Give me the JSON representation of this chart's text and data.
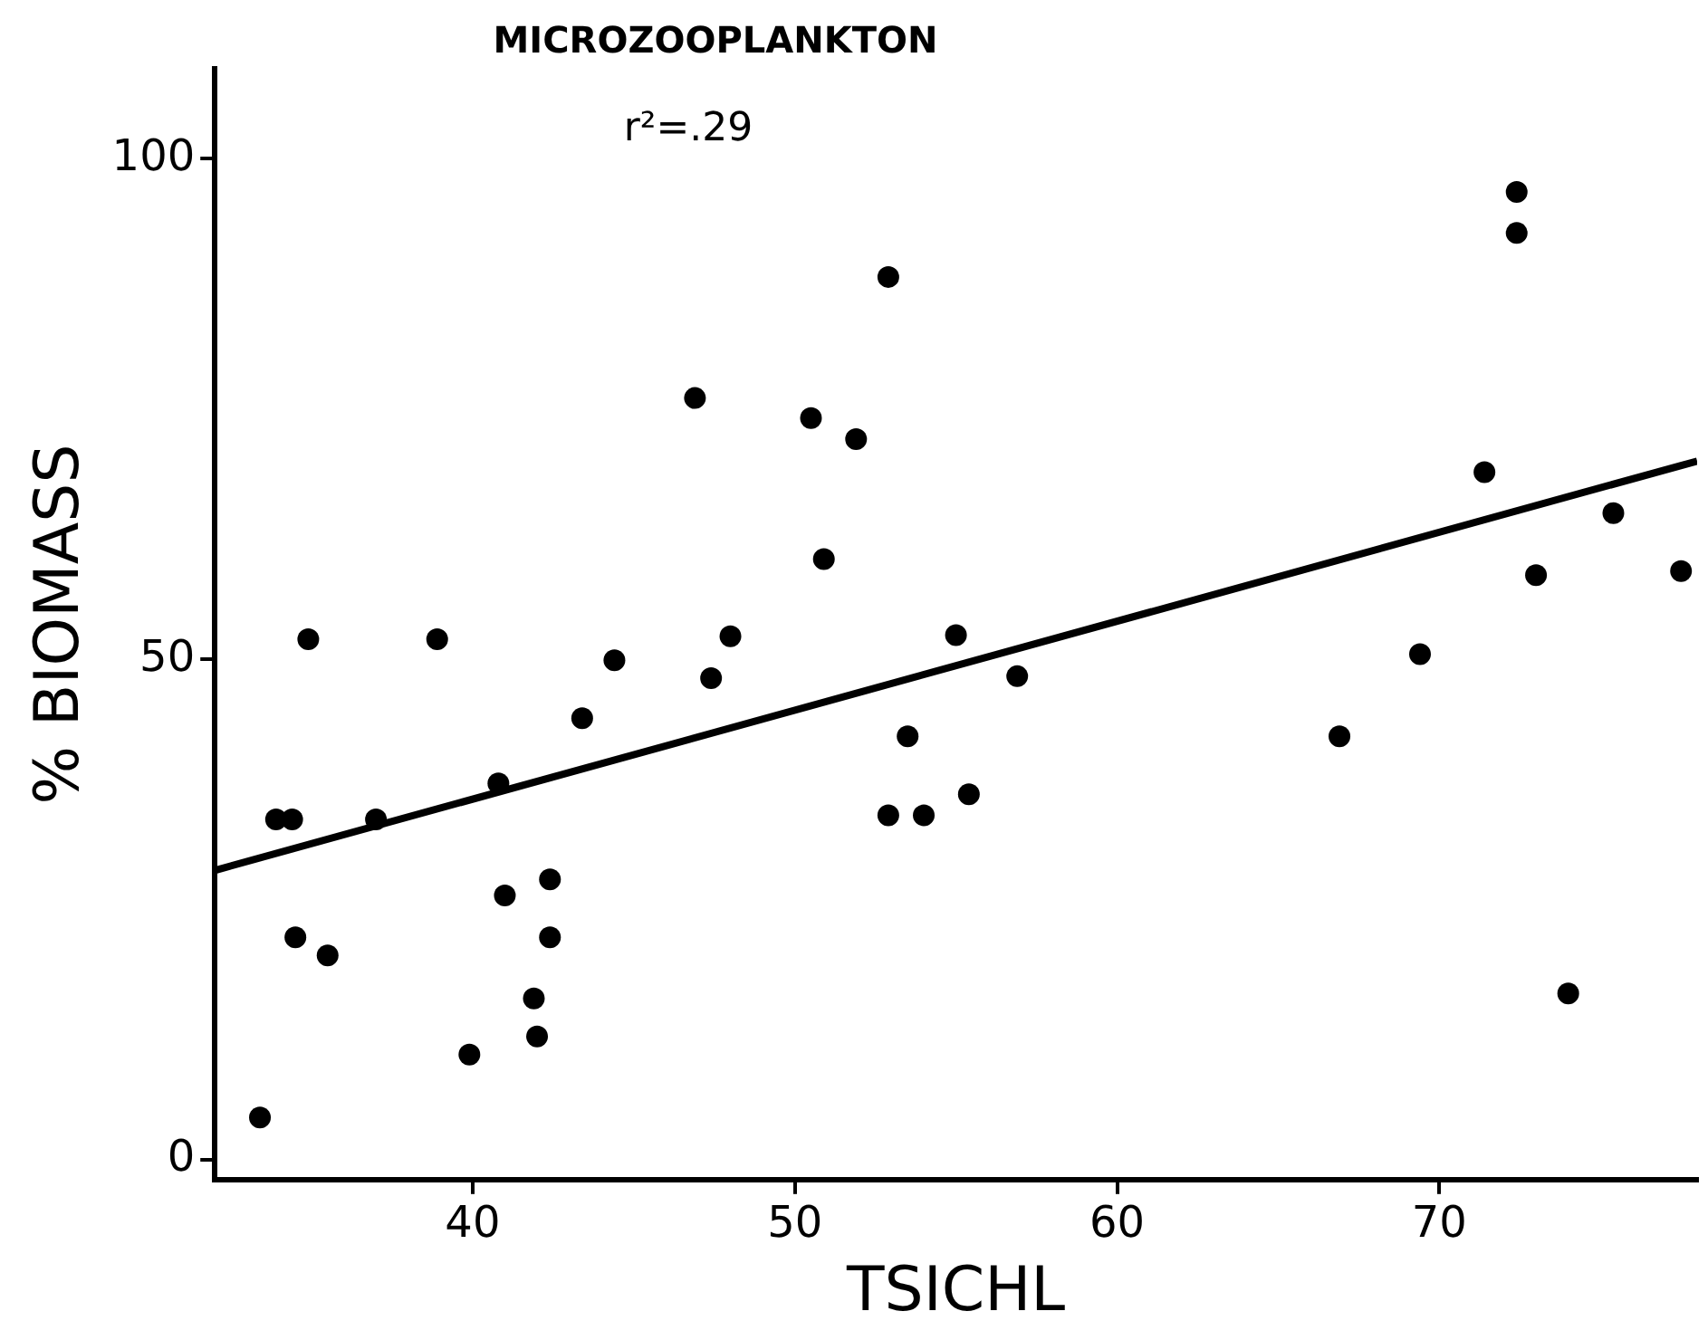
{
  "chart_data": {
    "type": "scatter",
    "title": "MICROZOOPLANKTON",
    "annotations": [
      "r²=.29"
    ],
    "xlabel": "TSICHL",
    "ylabel": "% BIOMASS",
    "xlim": [
      32,
      78
    ],
    "ylim": [
      -2,
      109
    ],
    "xticks": [
      40,
      50,
      60,
      70
    ],
    "yticks": [
      0,
      50,
      100
    ],
    "grid": false,
    "legend": false,
    "marker": "circle",
    "series": [
      {
        "color": "#000000",
        "x": [
          33.4,
          33.9,
          34.4,
          34.9,
          34.5,
          35.5,
          37.0,
          38.9,
          39.9,
          40.8,
          41.0,
          41.9,
          42.0,
          42.4,
          42.4,
          43.4,
          44.4,
          46.9,
          47.4,
          48.0,
          50.5,
          50.9,
          51.9,
          52.9,
          52.9,
          53.5,
          54.0,
          55.0,
          55.4,
          56.9,
          66.9,
          69.4,
          71.4,
          72.4,
          72.4,
          73.0,
          74.0,
          75.4,
          77.5
        ],
        "values": [
          4.2,
          34,
          34,
          52,
          22.2,
          20.4,
          34,
          52,
          10.5,
          37.6,
          26.4,
          16.1,
          12.3,
          28,
          22.2,
          44.1,
          49.9,
          76.1,
          48.1,
          52.3,
          74.1,
          60,
          72,
          88.2,
          34.4,
          42.3,
          34.4,
          52.4,
          36.5,
          48.3,
          42.3,
          50.5,
          68.7,
          96.7,
          92.6,
          58.4,
          16.6,
          64.6,
          58.8
        ]
      },
      {
        "type": "line",
        "color": "#000000",
        "marker": "none",
        "line_style": "solid",
        "x": [
          32,
          78
        ],
        "values": [
          28.9,
          69.8
        ]
      }
    ]
  }
}
